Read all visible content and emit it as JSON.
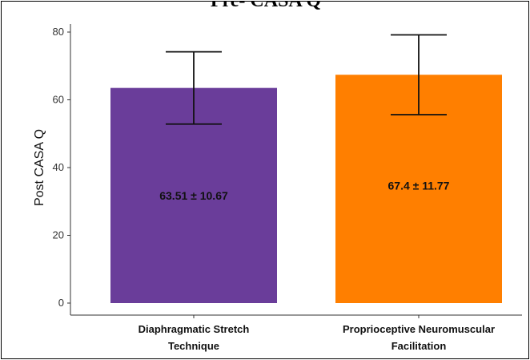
{
  "chart_data": {
    "type": "bar",
    "title": "Pre- CASA Q",
    "xlabel": "",
    "ylabel": "Post CASA Q",
    "categories": [
      [
        "Diaphragmatic Stretch",
        "Technique"
      ],
      [
        "Proprioceptive Neuromuscular",
        "Facilitation"
      ]
    ],
    "values": [
      63.51,
      67.4
    ],
    "errors": [
      10.67,
      11.77
    ],
    "data_labels": [
      "63.51 ± 10.67",
      "67.4 ± 11.77"
    ],
    "colors": [
      "#6a3d9a",
      "#ff7f00"
    ],
    "ylim": [
      0,
      80
    ],
    "yticks": [
      0,
      20,
      40,
      60,
      80
    ],
    "grid": false,
    "legend": "none"
  }
}
